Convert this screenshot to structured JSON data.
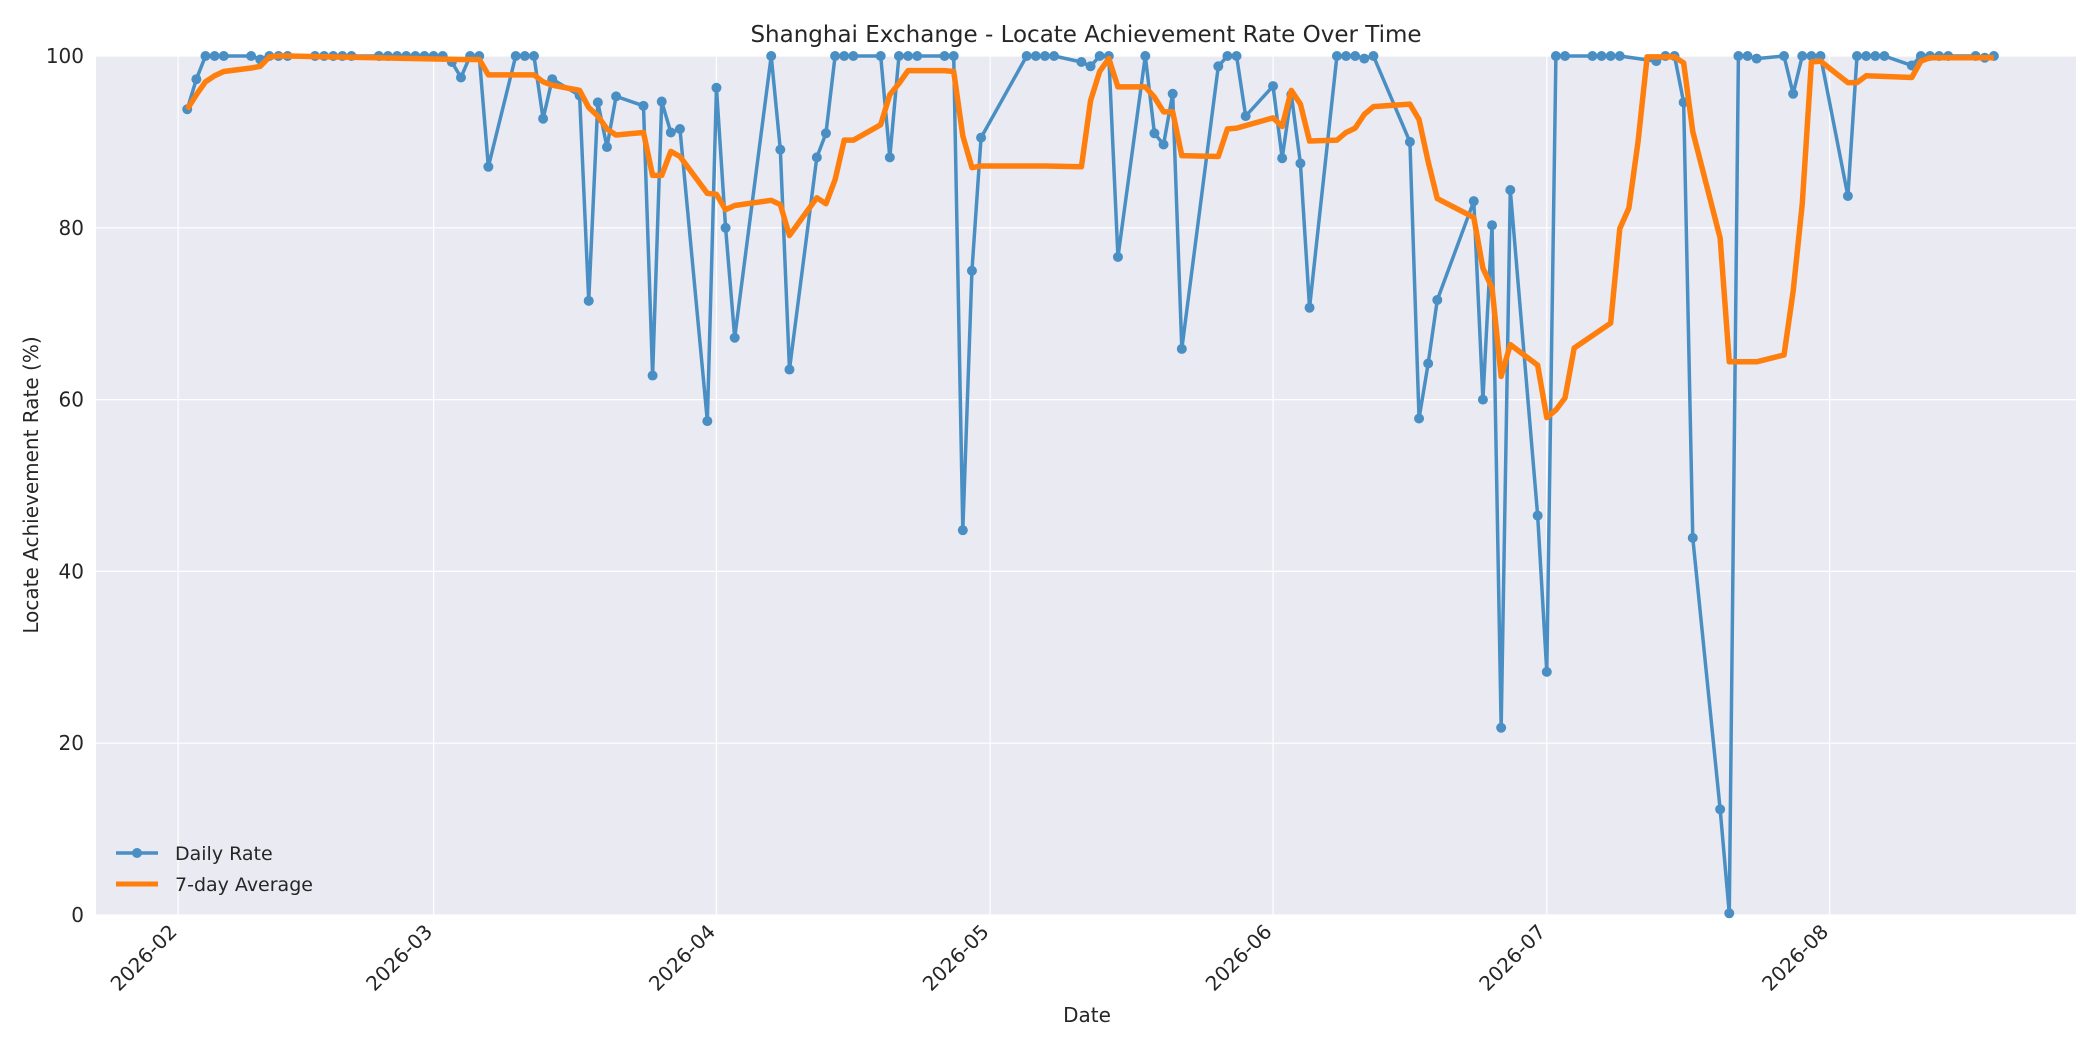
{
  "chart_data": {
    "type": "line",
    "title": "Shanghai Exchange - Locate Achievement Rate Over Time",
    "xlabel": "Date",
    "ylabel": "Locate Achievement Rate (%)",
    "ylim": [
      0,
      100
    ],
    "xlim": [
      "2026-01-23",
      "2026-08-28"
    ],
    "x_ticks": [
      "2026-02-01",
      "2026-03-01",
      "2026-04-01",
      "2026-05-01",
      "2026-06-01",
      "2026-07-01",
      "2026-08-01"
    ],
    "x_tick_labels": [
      "2026-02",
      "2026-03",
      "2026-04",
      "2026-05",
      "2026-06",
      "2026-07",
      "2026-08"
    ],
    "y_ticks": [
      0,
      20,
      40,
      60,
      80,
      100
    ],
    "y_tick_labels": [
      "0",
      "20",
      "40",
      "60",
      "80",
      "100"
    ],
    "grid": true,
    "legend_position": "lower-left",
    "background": "#eaeaf2",
    "series": [
      {
        "name": "Daily Rate",
        "color": "#4a8fc4",
        "marker": "circle",
        "points": [
          [
            "2026-02-02",
            93.8
          ],
          [
            "2026-02-03",
            97.3
          ],
          [
            "2026-02-04",
            100
          ],
          [
            "2026-02-05",
            100
          ],
          [
            "2026-02-06",
            100
          ],
          [
            "2026-02-09",
            100
          ],
          [
            "2026-02-10",
            99.6
          ],
          [
            "2026-02-11",
            100
          ],
          [
            "2026-02-12",
            100
          ],
          [
            "2026-02-13",
            100
          ],
          [
            "2026-02-16",
            100
          ],
          [
            "2026-02-17",
            100
          ],
          [
            "2026-02-18",
            100
          ],
          [
            "2026-02-19",
            100
          ],
          [
            "2026-02-20",
            100
          ],
          [
            "2026-02-23",
            100
          ],
          [
            "2026-02-24",
            100
          ],
          [
            "2026-02-25",
            100
          ],
          [
            "2026-02-26",
            100
          ],
          [
            "2026-02-27",
            100
          ],
          [
            "2026-02-28",
            100
          ],
          [
            "2026-03-01",
            100
          ],
          [
            "2026-03-02",
            100
          ],
          [
            "2026-03-03",
            99.3
          ],
          [
            "2026-03-04",
            97.5
          ],
          [
            "2026-03-05",
            100
          ],
          [
            "2026-03-06",
            100
          ],
          [
            "2026-03-07",
            87.1
          ],
          [
            "2026-03-10",
            100
          ],
          [
            "2026-03-11",
            100
          ],
          [
            "2026-03-12",
            100
          ],
          [
            "2026-03-13",
            92.7
          ],
          [
            "2026-03-14",
            97.3
          ],
          [
            "2026-03-17",
            95.4
          ],
          [
            "2026-03-18",
            71.5
          ],
          [
            "2026-03-19",
            94.6
          ],
          [
            "2026-03-20",
            89.4
          ],
          [
            "2026-03-21",
            95.3
          ],
          [
            "2026-03-24",
            94.2
          ],
          [
            "2026-03-25",
            62.8
          ],
          [
            "2026-03-26",
            94.7
          ],
          [
            "2026-03-27",
            91.1
          ],
          [
            "2026-03-28",
            91.5
          ],
          [
            "2026-03-31",
            57.5
          ],
          [
            "2026-04-01",
            96.3
          ],
          [
            "2026-04-02",
            80
          ],
          [
            "2026-04-03",
            67.2
          ],
          [
            "2026-04-07",
            100
          ],
          [
            "2026-04-08",
            89.1
          ],
          [
            "2026-04-09",
            63.5
          ],
          [
            "2026-04-12",
            88.2
          ],
          [
            "2026-04-13",
            91
          ],
          [
            "2026-04-14",
            100
          ],
          [
            "2026-04-15",
            100
          ],
          [
            "2026-04-16",
            100
          ],
          [
            "2026-04-19",
            100
          ],
          [
            "2026-04-20",
            88.2
          ],
          [
            "2026-04-21",
            100
          ],
          [
            "2026-04-22",
            100
          ],
          [
            "2026-04-23",
            100
          ],
          [
            "2026-04-26",
            100
          ],
          [
            "2026-04-27",
            100
          ],
          [
            "2026-04-28",
            44.8
          ],
          [
            "2026-04-29",
            75
          ],
          [
            "2026-04-30",
            90.5
          ],
          [
            "2026-05-05",
            100
          ],
          [
            "2026-05-06",
            100
          ],
          [
            "2026-05-07",
            100
          ],
          [
            "2026-05-08",
            100
          ],
          [
            "2026-05-11",
            99.3
          ],
          [
            "2026-05-12",
            98.8
          ],
          [
            "2026-05-13",
            100
          ],
          [
            "2026-05-14",
            100
          ],
          [
            "2026-05-15",
            76.6
          ],
          [
            "2026-05-18",
            100
          ],
          [
            "2026-05-19",
            91
          ],
          [
            "2026-05-20",
            89.7
          ],
          [
            "2026-05-21",
            95.6
          ],
          [
            "2026-05-22",
            65.9
          ],
          [
            "2026-05-26",
            98.8
          ],
          [
            "2026-05-27",
            100
          ],
          [
            "2026-05-28",
            100
          ],
          [
            "2026-05-29",
            93
          ],
          [
            "2026-06-01",
            96.5
          ],
          [
            "2026-06-02",
            88.1
          ],
          [
            "2026-06-03",
            95.5
          ],
          [
            "2026-06-04",
            87.5
          ],
          [
            "2026-06-05",
            70.7
          ],
          [
            "2026-06-08",
            100
          ],
          [
            "2026-06-09",
            100
          ],
          [
            "2026-06-10",
            100
          ],
          [
            "2026-06-11",
            99.7
          ],
          [
            "2026-06-12",
            100
          ],
          [
            "2026-06-16",
            90
          ],
          [
            "2026-06-17",
            57.8
          ],
          [
            "2026-06-18",
            64.2
          ],
          [
            "2026-06-19",
            71.6
          ],
          [
            "2026-06-23",
            83.1
          ],
          [
            "2026-06-24",
            60
          ],
          [
            "2026-06-25",
            80.3
          ],
          [
            "2026-06-26",
            21.8
          ],
          [
            "2026-06-27",
            84.4
          ],
          [
            "2026-06-30",
            46.5
          ],
          [
            "2026-07-01",
            28.3
          ],
          [
            "2026-07-02",
            100
          ],
          [
            "2026-07-03",
            100
          ],
          [
            "2026-07-06",
            100
          ],
          [
            "2026-07-07",
            100
          ],
          [
            "2026-07-08",
            100
          ],
          [
            "2026-07-09",
            100
          ],
          [
            "2026-07-13",
            99.4
          ],
          [
            "2026-07-14",
            100
          ],
          [
            "2026-07-15",
            100
          ],
          [
            "2026-07-16",
            94.6
          ],
          [
            "2026-07-17",
            43.9
          ],
          [
            "2026-07-20",
            12.3
          ],
          [
            "2026-07-21",
            0.2
          ],
          [
            "2026-07-22",
            100
          ],
          [
            "2026-07-23",
            100
          ],
          [
            "2026-07-24",
            99.7
          ],
          [
            "2026-07-27",
            100
          ],
          [
            "2026-07-28",
            95.6
          ],
          [
            "2026-07-29",
            100
          ],
          [
            "2026-07-30",
            100
          ],
          [
            "2026-07-31",
            100
          ],
          [
            "2026-08-03",
            83.7
          ],
          [
            "2026-08-04",
            100
          ],
          [
            "2026-08-05",
            100
          ],
          [
            "2026-08-06",
            100
          ],
          [
            "2026-08-07",
            100
          ],
          [
            "2026-08-10",
            98.9
          ],
          [
            "2026-08-11",
            100
          ],
          [
            "2026-08-12",
            100
          ],
          [
            "2026-08-13",
            100
          ],
          [
            "2026-08-14",
            100
          ],
          [
            "2026-08-17",
            100
          ],
          [
            "2026-08-18",
            99.8
          ],
          [
            "2026-08-19",
            100
          ]
        ]
      },
      {
        "name": "7-day Average",
        "color": "#ff7f0e",
        "marker": "none",
        "points": [
          [
            "2026-02-02",
            93.8
          ],
          [
            "2026-02-03",
            95.5
          ],
          [
            "2026-02-04",
            97
          ],
          [
            "2026-02-05",
            97.7
          ],
          [
            "2026-02-06",
            98.2
          ],
          [
            "2026-02-09",
            98.6
          ],
          [
            "2026-02-10",
            98.8
          ],
          [
            "2026-02-11",
            99.9
          ],
          [
            "2026-02-12",
            100
          ],
          [
            "2026-02-13",
            100
          ],
          [
            "2026-03-04",
            99.6
          ],
          [
            "2026-03-05",
            99.6
          ],
          [
            "2026-03-06",
            99.6
          ],
          [
            "2026-03-07",
            97.8
          ],
          [
            "2026-03-12",
            97.8
          ],
          [
            "2026-03-13",
            97
          ],
          [
            "2026-03-14",
            96.6
          ],
          [
            "2026-03-17",
            96
          ],
          [
            "2026-03-18",
            94
          ],
          [
            "2026-03-19",
            93
          ],
          [
            "2026-03-20",
            91.5
          ],
          [
            "2026-03-21",
            90.8
          ],
          [
            "2026-03-24",
            91.1
          ],
          [
            "2026-03-25",
            86.1
          ],
          [
            "2026-03-26",
            86.1
          ],
          [
            "2026-03-27",
            88.9
          ],
          [
            "2026-03-28",
            88.3
          ],
          [
            "2026-03-31",
            84
          ],
          [
            "2026-04-01",
            83.9
          ],
          [
            "2026-04-02",
            82.1
          ],
          [
            "2026-04-03",
            82.6
          ],
          [
            "2026-04-07",
            83.2
          ],
          [
            "2026-04-08",
            82.7
          ],
          [
            "2026-04-09",
            79.1
          ],
          [
            "2026-04-12",
            83.5
          ],
          [
            "2026-04-13",
            82.8
          ],
          [
            "2026-04-14",
            85.6
          ],
          [
            "2026-04-15",
            90.2
          ],
          [
            "2026-04-16",
            90.2
          ],
          [
            "2026-04-19",
            92
          ],
          [
            "2026-04-20",
            95.5
          ],
          [
            "2026-04-21",
            96.8
          ],
          [
            "2026-04-22",
            98.3
          ],
          [
            "2026-04-26",
            98.3
          ],
          [
            "2026-04-27",
            98.2
          ],
          [
            "2026-04-28",
            90.7
          ],
          [
            "2026-04-29",
            87
          ],
          [
            "2026-04-30",
            87.2
          ],
          [
            "2026-05-07",
            87.2
          ],
          [
            "2026-05-11",
            87.1
          ],
          [
            "2026-05-12",
            94.8
          ],
          [
            "2026-05-13",
            98.2
          ],
          [
            "2026-05-14",
            99.7
          ],
          [
            "2026-05-15",
            96.4
          ],
          [
            "2026-05-18",
            96.4
          ],
          [
            "2026-05-19",
            95.2
          ],
          [
            "2026-05-20",
            93.5
          ],
          [
            "2026-05-21",
            93.5
          ],
          [
            "2026-05-22",
            88.4
          ],
          [
            "2026-05-26",
            88.3
          ],
          [
            "2026-05-27",
            91.5
          ],
          [
            "2026-05-28",
            91.6
          ],
          [
            "2026-06-01",
            92.8
          ],
          [
            "2026-06-02",
            91.8
          ],
          [
            "2026-06-03",
            96
          ],
          [
            "2026-06-04",
            94.4
          ],
          [
            "2026-06-05",
            90.1
          ],
          [
            "2026-06-08",
            90.2
          ],
          [
            "2026-06-09",
            91.1
          ],
          [
            "2026-06-10",
            91.6
          ],
          [
            "2026-06-11",
            93.2
          ],
          [
            "2026-06-12",
            94.1
          ],
          [
            "2026-06-16",
            94.4
          ],
          [
            "2026-06-17",
            92.6
          ],
          [
            "2026-06-18",
            87.7
          ],
          [
            "2026-06-19",
            83.4
          ],
          [
            "2026-06-23",
            81.2
          ],
          [
            "2026-06-24",
            75.3
          ],
          [
            "2026-06-25",
            73
          ],
          [
            "2026-06-26",
            62.7
          ],
          [
            "2026-06-27",
            66.4
          ],
          [
            "2026-06-30",
            64
          ],
          [
            "2026-07-01",
            57.9
          ],
          [
            "2026-07-02",
            58.8
          ],
          [
            "2026-07-03",
            60.2
          ],
          [
            "2026-07-04",
            66
          ],
          [
            "2026-07-08",
            68.9
          ],
          [
            "2026-07-09",
            79.9
          ],
          [
            "2026-07-10",
            82.3
          ],
          [
            "2026-07-11",
            90
          ],
          [
            "2026-07-12",
            99.9
          ],
          [
            "2026-07-15",
            99.9
          ],
          [
            "2026-07-16",
            99.2
          ],
          [
            "2026-07-17",
            91.2
          ],
          [
            "2026-07-20",
            78.8
          ],
          [
            "2026-07-21",
            64.4
          ],
          [
            "2026-07-24",
            64.4
          ],
          [
            "2026-07-27",
            65.2
          ],
          [
            "2026-07-28",
            72.6
          ],
          [
            "2026-07-29",
            82.8
          ],
          [
            "2026-07-30",
            99.3
          ],
          [
            "2026-07-31",
            99.4
          ],
          [
            "2026-08-03",
            96.9
          ],
          [
            "2026-08-04",
            96.9
          ],
          [
            "2026-08-05",
            97.7
          ],
          [
            "2026-08-10",
            97.5
          ],
          [
            "2026-08-11",
            99.4
          ],
          [
            "2026-08-12",
            99.8
          ],
          [
            "2026-08-19",
            99.8
          ]
        ]
      }
    ]
  }
}
